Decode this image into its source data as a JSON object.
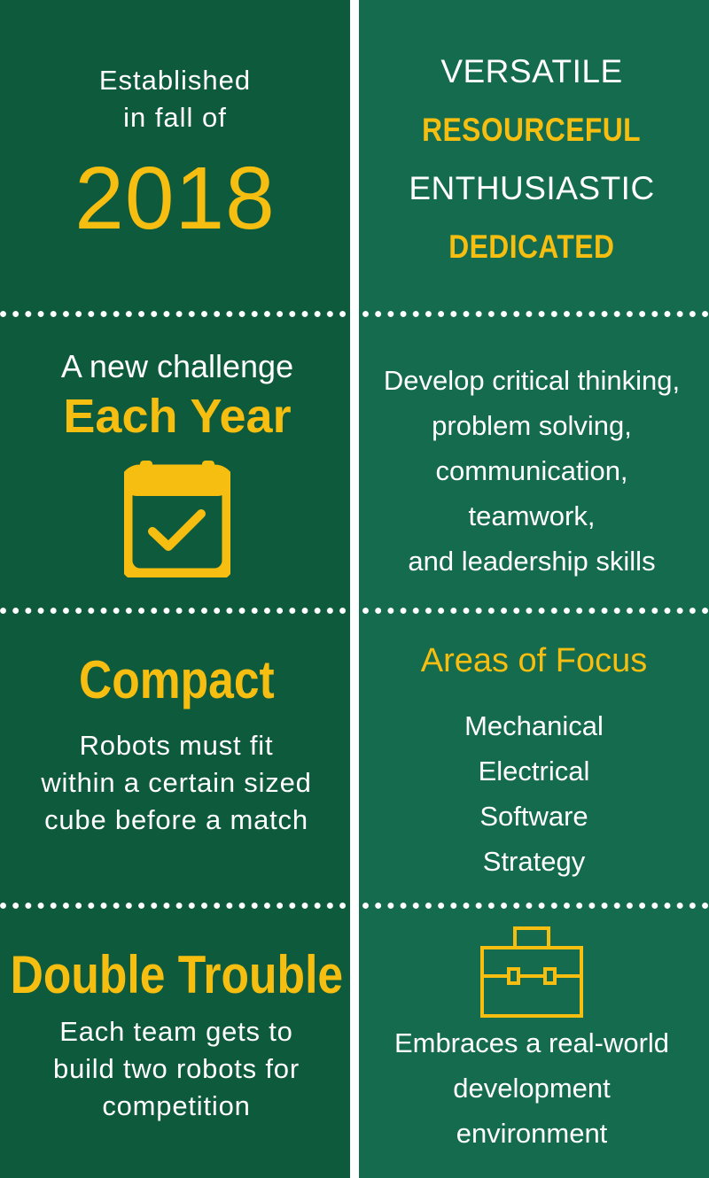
{
  "panels": {
    "established": {
      "line1": "Established",
      "line2": "in fall of",
      "year": "2018"
    },
    "traits": [
      "VERSATILE",
      "RESOURCEFUL",
      "ENTHUSIASTIC",
      "DEDICATED"
    ],
    "challenge": {
      "line1": "A new challenge",
      "highlight": "Each Year",
      "icon": "calendar-check-icon"
    },
    "skills": {
      "lines": [
        "Develop critical thinking,",
        "problem solving,",
        "communication,",
        "teamwork,",
        "and leadership skills"
      ]
    },
    "compact": {
      "title": "Compact",
      "lines": [
        "Robots must fit",
        "within a certain sized",
        "cube before a match"
      ]
    },
    "focus": {
      "title": "Areas of Focus",
      "items": [
        "Mechanical",
        "Electrical",
        "Software",
        "Strategy"
      ]
    },
    "double": {
      "title": "Double Trouble",
      "lines": [
        "Each team gets to",
        "build two robots for",
        "competition"
      ]
    },
    "environment": {
      "icon": "toolbox-icon",
      "lines": [
        "Embraces a real-world",
        "development",
        "environment"
      ]
    }
  },
  "colors": {
    "left_panel": "#0e5a3d",
    "right_panel": "#146b4d",
    "accent": "#f6be10",
    "text": "#ffffff"
  }
}
